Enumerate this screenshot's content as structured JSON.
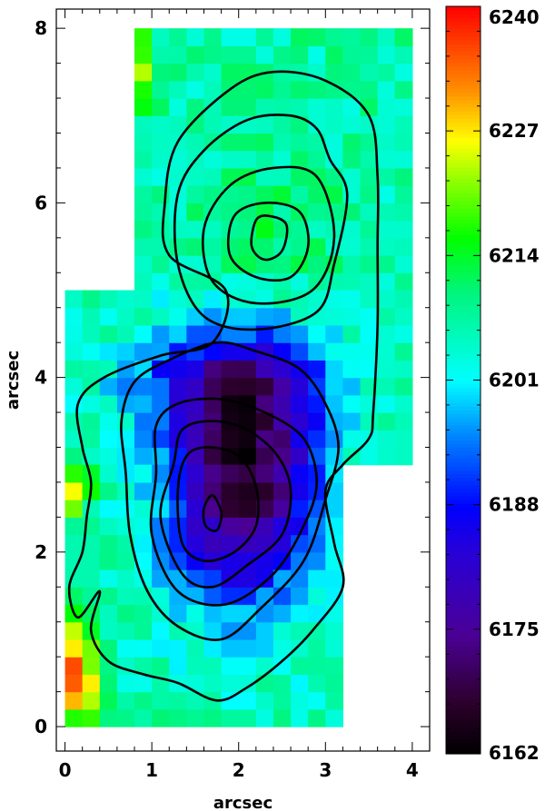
{
  "chart_data": {
    "type": "heatmap",
    "xlabel": "arcsec",
    "ylabel": "arcsec",
    "xlim": [
      -0.1,
      4.2
    ],
    "ylim": [
      -0.28,
      8.22
    ],
    "x_ticks": [
      "0",
      "1",
      "2",
      "3",
      "4"
    ],
    "y_ticks": [
      "0",
      "2",
      "4",
      "6",
      "8"
    ],
    "colorbar": {
      "ticks": [
        "6162",
        "6175",
        "6188",
        "6201",
        "6214",
        "6227",
        "6240"
      ],
      "range": [
        6162,
        6240
      ],
      "colormap": "rainbow (black-purple-blue-cyan-green-yellow-red)"
    },
    "pixel_size": 0.2,
    "regions": [
      {
        "x_range": [
          0.8,
          4.0
        ],
        "y_range": [
          5.0,
          8.0
        ],
        "mean": 6207
      },
      {
        "x_range": [
          0.0,
          4.0
        ],
        "y_range": [
          3.0,
          5.0
        ],
        "mean": 6195
      },
      {
        "x_range": [
          0.0,
          3.2
        ],
        "y_range": [
          0.0,
          3.0
        ],
        "mean": 6195
      }
    ],
    "velocity_features": [
      {
        "kind": "minimum",
        "x": 2.1,
        "y": 3.3,
        "value": 6163
      },
      {
        "kind": "low_lobe",
        "x": 1.8,
        "y": 2.5,
        "value": 6172
      },
      {
        "kind": "high_edge",
        "x": 0.1,
        "y": 0.5,
        "value": 6236
      },
      {
        "kind": "high_edge",
        "x": 0.1,
        "y": 2.7,
        "value": 6228
      },
      {
        "kind": "north_lobe",
        "x": 2.3,
        "y": 5.6,
        "value": 6210
      }
    ],
    "contours": [
      [
        [
          2.35,
          5.85
        ],
        [
          2.55,
          5.75
        ],
        [
          2.5,
          5.45
        ],
        [
          2.3,
          5.35
        ],
        [
          2.15,
          5.5
        ],
        [
          2.2,
          5.8
        ]
      ],
      [
        [
          2.3,
          6.0
        ],
        [
          2.7,
          5.9
        ],
        [
          2.8,
          5.5
        ],
        [
          2.6,
          5.15
        ],
        [
          2.2,
          5.15
        ],
        [
          1.9,
          5.4
        ],
        [
          1.95,
          5.85
        ]
      ],
      [
        [
          2.4,
          6.4
        ],
        [
          2.9,
          6.3
        ],
        [
          3.1,
          5.6
        ],
        [
          2.85,
          5.0
        ],
        [
          2.2,
          4.85
        ],
        [
          1.7,
          5.1
        ],
        [
          1.6,
          5.7
        ],
        [
          1.9,
          6.2
        ]
      ],
      [
        [
          2.6,
          7.0
        ],
        [
          2.9,
          6.85
        ],
        [
          3.05,
          6.5
        ],
        [
          3.25,
          6.1
        ],
        [
          3.1,
          5.3
        ],
        [
          2.9,
          4.75
        ],
        [
          2.2,
          4.55
        ],
        [
          1.6,
          4.7
        ],
        [
          1.3,
          5.3
        ],
        [
          1.3,
          6.1
        ],
        [
          1.6,
          6.6
        ],
        [
          2.1,
          6.95
        ]
      ],
      [
        [
          2.4,
          7.5
        ],
        [
          3.0,
          7.4
        ],
        [
          3.5,
          7.0
        ],
        [
          3.6,
          6.3
        ],
        [
          3.6,
          5.5
        ],
        [
          3.6,
          4.6
        ],
        [
          3.55,
          3.6
        ],
        [
          3.5,
          3.3
        ],
        [
          3.2,
          3.0
        ],
        [
          3.0,
          2.7
        ],
        [
          3.1,
          2.1
        ],
        [
          3.2,
          1.6
        ],
        [
          2.85,
          1.1
        ],
        [
          2.5,
          0.75
        ],
        [
          2.1,
          0.45
        ],
        [
          1.75,
          0.3
        ],
        [
          1.3,
          0.5
        ],
        [
          0.9,
          0.6
        ],
        [
          0.5,
          0.75
        ],
        [
          0.3,
          1.1
        ],
        [
          0.4,
          1.55
        ],
        [
          0.15,
          1.25
        ],
        [
          0.05,
          1.6
        ],
        [
          0.2,
          2.0
        ],
        [
          0.25,
          2.4
        ],
        [
          0.3,
          2.8
        ],
        [
          0.2,
          3.2
        ],
        [
          0.15,
          3.7
        ],
        [
          0.45,
          4.0
        ],
        [
          1.1,
          4.25
        ],
        [
          1.7,
          4.4
        ],
        [
          1.85,
          5.0
        ],
        [
          1.2,
          5.4
        ],
        [
          1.15,
          6.0
        ],
        [
          1.3,
          6.7
        ],
        [
          1.9,
          7.3
        ]
      ],
      [
        [
          1.75,
          4.4
        ],
        [
          2.2,
          4.3
        ],
        [
          2.7,
          4.1
        ],
        [
          3.0,
          3.7
        ],
        [
          3.15,
          3.2
        ],
        [
          3.0,
          2.6
        ],
        [
          2.75,
          1.9
        ],
        [
          2.25,
          1.35
        ],
        [
          1.8,
          1.0
        ],
        [
          1.3,
          1.15
        ],
        [
          0.95,
          1.55
        ],
        [
          0.75,
          2.2
        ],
        [
          0.7,
          2.9
        ],
        [
          0.65,
          3.5
        ],
        [
          0.8,
          3.95
        ],
        [
          1.2,
          4.2
        ]
      ],
      [
        [
          1.8,
          3.75
        ],
        [
          2.3,
          3.6
        ],
        [
          2.75,
          3.3
        ],
        [
          2.9,
          2.8
        ],
        [
          2.75,
          2.3
        ],
        [
          2.4,
          1.75
        ],
        [
          1.85,
          1.4
        ],
        [
          1.3,
          1.55
        ],
        [
          1.0,
          2.2
        ],
        [
          1.05,
          2.9
        ],
        [
          1.05,
          3.45
        ],
        [
          1.3,
          3.7
        ]
      ],
      [
        [
          1.7,
          3.5
        ],
        [
          2.1,
          3.4
        ],
        [
          2.45,
          3.1
        ],
        [
          2.6,
          2.7
        ],
        [
          2.5,
          2.2
        ],
        [
          2.1,
          1.85
        ],
        [
          1.7,
          1.6
        ],
        [
          1.35,
          1.75
        ],
        [
          1.1,
          2.4
        ],
        [
          1.25,
          3.0
        ],
        [
          1.35,
          3.4
        ]
      ],
      [
        [
          1.65,
          3.2
        ],
        [
          2.0,
          3.1
        ],
        [
          2.2,
          2.75
        ],
        [
          2.2,
          2.3
        ],
        [
          1.95,
          2.0
        ],
        [
          1.6,
          1.9
        ],
        [
          1.35,
          2.1
        ],
        [
          1.3,
          2.7
        ],
        [
          1.4,
          3.1
        ]
      ],
      [
        [
          1.7,
          2.65
        ],
        [
          1.8,
          2.45
        ],
        [
          1.75,
          2.25
        ],
        [
          1.62,
          2.3
        ],
        [
          1.6,
          2.5
        ]
      ]
    ]
  }
}
